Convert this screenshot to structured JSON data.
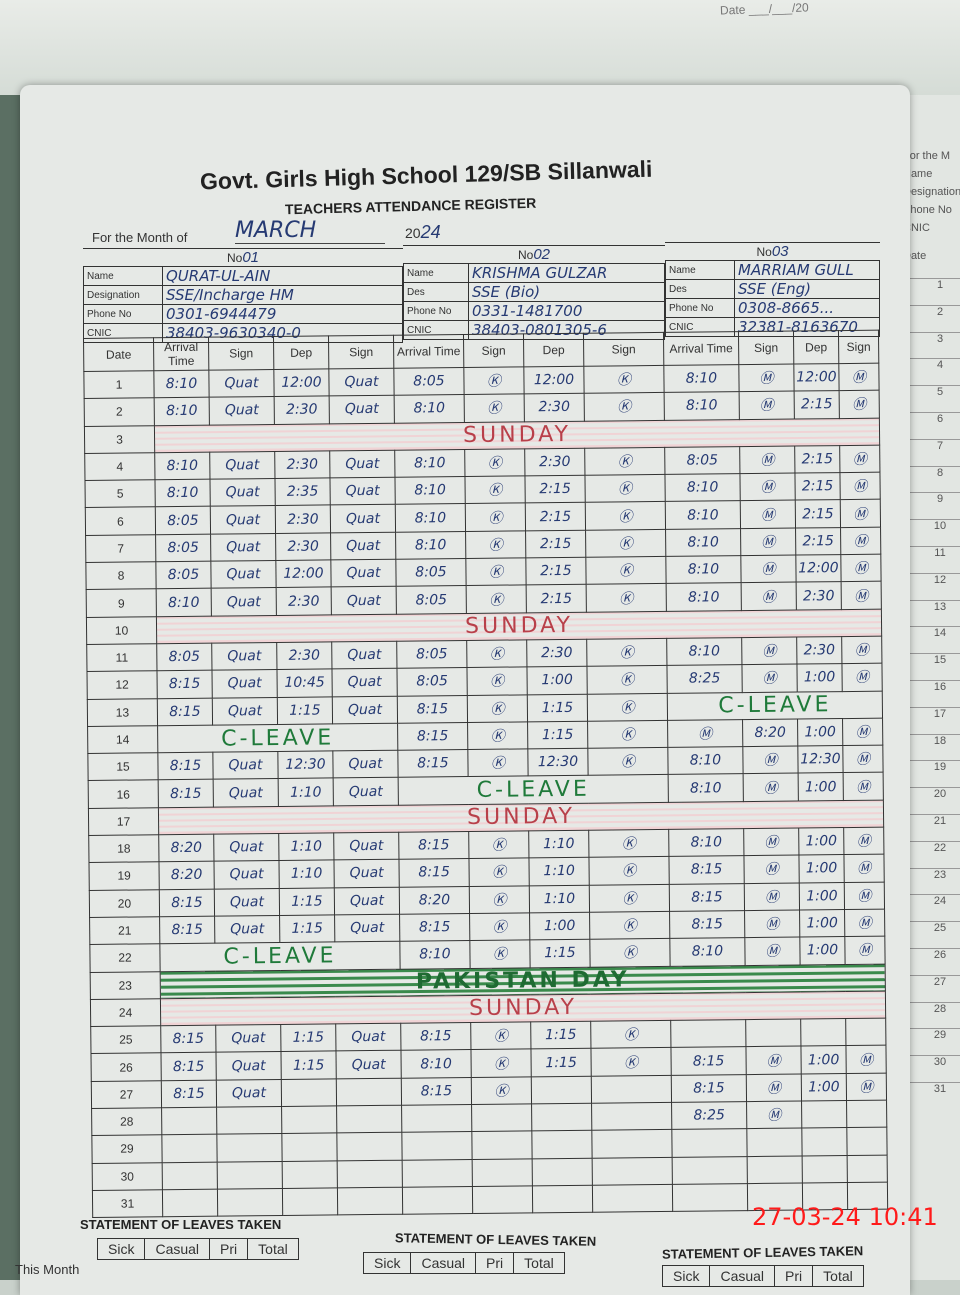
{
  "photo_timestamp": "27-03-24 10:41",
  "top_stamp": "Date ___/___/20",
  "school_name": "Govt. Girls High School 129/SB Sillanwali",
  "register_title": "TEACHERS ATTENDANCE REGISTER",
  "month_label": "For the Month of",
  "month_value": "MARCH",
  "year_prefix": "20",
  "year_value": "24",
  "info_labels": {
    "no": "No",
    "name": "Name",
    "designation": "Designation",
    "des": "Des",
    "phone": "Phone No",
    "cnic": "CNIC"
  },
  "teachers": [
    {
      "no": "01",
      "name": "QURAT-UL-AIN",
      "designation": "SSE/Incharge HM",
      "phone": "0301-6944479",
      "cnic": "38403-9630340-0"
    },
    {
      "no": "02",
      "name": "KRISHMA GULZAR",
      "designation": "SSE (Bio)",
      "phone": "0331-1481700",
      "cnic": "38403-0801305-6"
    },
    {
      "no": "03",
      "name": "MARRIAM GULL",
      "designation": "SSE (Eng)",
      "phone": "0308-8665...",
      "cnic": "32381-8163670"
    }
  ],
  "columns": {
    "date": "Date",
    "arrival": "Arrival Time",
    "sign": "Sign",
    "dep": "Dep"
  },
  "rows": [
    {
      "date": "1",
      "t": [
        [
          "8:10",
          "Quat",
          "12:00",
          "Quat"
        ],
        [
          "8:05",
          "Ⓚ",
          "12:00",
          "Ⓚ"
        ],
        [
          "8:10",
          "Ⓜ",
          "12:00",
          "Ⓜ"
        ]
      ]
    },
    {
      "date": "2",
      "t": [
        [
          "8:10",
          "Quat",
          "2:30",
          "Quat"
        ],
        [
          "8:10",
          "Ⓚ",
          "2:30",
          "Ⓚ"
        ],
        [
          "8:10",
          "Ⓜ",
          "2:15",
          "Ⓜ"
        ]
      ]
    },
    {
      "date": "3",
      "note": "SUNDAY",
      "color": "red"
    },
    {
      "date": "4",
      "t": [
        [
          "8:10",
          "Quat",
          "2:30",
          "Quat"
        ],
        [
          "8:10",
          "Ⓚ",
          "2:30",
          "Ⓚ"
        ],
        [
          "8:05",
          "Ⓜ",
          "2:15",
          "Ⓜ"
        ]
      ]
    },
    {
      "date": "5",
      "t": [
        [
          "8:10",
          "Quat",
          "2:35",
          "Quat"
        ],
        [
          "8:10",
          "Ⓚ",
          "2:15",
          "Ⓚ"
        ],
        [
          "8:10",
          "Ⓜ",
          "2:15",
          "Ⓜ"
        ]
      ]
    },
    {
      "date": "6",
      "t": [
        [
          "8:05",
          "Quat",
          "2:30",
          "Quat"
        ],
        [
          "8:10",
          "Ⓚ",
          "2:15",
          "Ⓚ"
        ],
        [
          "8:10",
          "Ⓜ",
          "2:15",
          "Ⓜ"
        ]
      ]
    },
    {
      "date": "7",
      "t": [
        [
          "8:05",
          "Quat",
          "2:30",
          "Quat"
        ],
        [
          "8:10",
          "Ⓚ",
          "2:15",
          "Ⓚ"
        ],
        [
          "8:10",
          "Ⓜ",
          "2:15",
          "Ⓜ"
        ]
      ]
    },
    {
      "date": "8",
      "t": [
        [
          "8:05",
          "Quat",
          "12:00",
          "Quat"
        ],
        [
          "8:05",
          "Ⓚ",
          "2:15",
          "Ⓚ"
        ],
        [
          "8:10",
          "Ⓜ",
          "12:00",
          "Ⓜ"
        ]
      ]
    },
    {
      "date": "9",
      "t": [
        [
          "8:10",
          "Quat",
          "2:30",
          "Quat"
        ],
        [
          "8:05",
          "Ⓚ",
          "2:15",
          "Ⓚ"
        ],
        [
          "8:10",
          "Ⓜ",
          "2:30",
          "Ⓜ"
        ]
      ]
    },
    {
      "date": "10",
      "note": "SUNDAY",
      "color": "red"
    },
    {
      "date": "11",
      "t": [
        [
          "8:05",
          "Quat",
          "2:30",
          "Quat"
        ],
        [
          "8:05",
          "Ⓚ",
          "2:30",
          "Ⓚ"
        ],
        [
          "8:10",
          "Ⓜ",
          "2:30",
          "Ⓜ"
        ]
      ]
    },
    {
      "date": "12",
      "t": [
        [
          "8:15",
          "Quat",
          "10:45",
          "Quat"
        ],
        [
          "8:05",
          "Ⓚ",
          "1:00",
          "Ⓚ"
        ],
        [
          "8:25",
          "Ⓜ",
          "1:00",
          "Ⓜ"
        ]
      ]
    },
    {
      "date": "13",
      "t": [
        [
          "8:15",
          "Quat",
          "1:15",
          "Quat"
        ],
        [
          "8:15",
          "Ⓚ",
          "1:15",
          "Ⓚ"
        ],
        "C-LEAVE"
      ]
    },
    {
      "date": "14",
      "t": [
        "C-LEAVE",
        [
          "8:15",
          "Ⓚ",
          "1:15",
          "Ⓚ"
        ],
        [
          "Ⓜ",
          "8:20",
          "1:00",
          "Ⓜ"
        ]
      ]
    },
    {
      "date": "15",
      "t": [
        [
          "8:15",
          "Quat",
          "12:30",
          "Quat"
        ],
        [
          "8:15",
          "Ⓚ",
          "12:30",
          "Ⓚ"
        ],
        [
          "8:10",
          "Ⓜ",
          "12:30",
          "Ⓜ"
        ]
      ]
    },
    {
      "date": "16",
      "t": [
        [
          "8:15",
          "Quat",
          "1:10",
          "Quat"
        ],
        "C-LEAVE",
        [
          "8:10",
          "Ⓜ",
          "1:00",
          "Ⓜ"
        ]
      ]
    },
    {
      "date": "17",
      "note": "SUNDAY",
      "color": "red"
    },
    {
      "date": "18",
      "t": [
        [
          "8:20",
          "Quat",
          "1:10",
          "Quat"
        ],
        [
          "8:15",
          "Ⓚ",
          "1:10",
          "Ⓚ"
        ],
        [
          "8:10",
          "Ⓜ",
          "1:00",
          "Ⓜ"
        ]
      ]
    },
    {
      "date": "19",
      "t": [
        [
          "8:20",
          "Quat",
          "1:10",
          "Quat"
        ],
        [
          "8:15",
          "Ⓚ",
          "1:10",
          "Ⓚ"
        ],
        [
          "8:15",
          "Ⓜ",
          "1:00",
          "Ⓜ"
        ]
      ]
    },
    {
      "date": "20",
      "t": [
        [
          "8:15",
          "Quat",
          "1:15",
          "Quat"
        ],
        [
          "8:20",
          "Ⓚ",
          "1:10",
          "Ⓚ"
        ],
        [
          "8:15",
          "Ⓜ",
          "1:00",
          "Ⓜ"
        ]
      ]
    },
    {
      "date": "21",
      "t": [
        [
          "8:15",
          "Quat",
          "1:15",
          "Quat"
        ],
        [
          "8:15",
          "Ⓚ",
          "1:00",
          "Ⓚ"
        ],
        [
          "8:15",
          "Ⓜ",
          "1:00",
          "Ⓜ"
        ]
      ]
    },
    {
      "date": "22",
      "t": [
        "C-LEAVE",
        [
          "8:10",
          "Ⓚ",
          "1:15",
          "Ⓚ"
        ],
        [
          "8:10",
          "Ⓜ",
          "1:00",
          "Ⓜ"
        ]
      ]
    },
    {
      "date": "23",
      "note": "PAKISTAN DAY",
      "color": "greenband"
    },
    {
      "date": "24",
      "note": "SUNDAY",
      "color": "red"
    },
    {
      "date": "25",
      "t": [
        [
          "8:15",
          "Quat",
          "1:15",
          "Quat"
        ],
        [
          "8:15",
          "Ⓚ",
          "1:15",
          "Ⓚ"
        ],
        [
          "",
          "",
          "",
          ""
        ]
      ]
    },
    {
      "date": "26",
      "t": [
        [
          "8:15",
          "Quat",
          "1:15",
          "Quat"
        ],
        [
          "8:10",
          "Ⓚ",
          "1:15",
          "Ⓚ"
        ],
        [
          "8:15",
          "Ⓜ",
          "1:00",
          "Ⓜ"
        ]
      ]
    },
    {
      "date": "27",
      "t": [
        [
          "8:15",
          "Quat",
          "",
          ""
        ],
        [
          "8:15",
          "Ⓚ",
          "",
          ""
        ],
        [
          "8:15",
          "Ⓜ",
          "1:00",
          "Ⓜ"
        ]
      ]
    },
    {
      "date": "28",
      "t": [
        [
          "",
          "",
          "",
          ""
        ],
        [
          "",
          "",
          "",
          ""
        ],
        [
          "8:25",
          "Ⓜ",
          "",
          ""
        ]
      ]
    },
    {
      "date": "29",
      "t": [
        [
          "",
          "",
          "",
          ""
        ],
        [
          "",
          "",
          "",
          ""
        ],
        [
          "",
          "",
          "",
          ""
        ]
      ]
    },
    {
      "date": "30",
      "t": [
        [
          "",
          "",
          "",
          ""
        ],
        [
          "",
          "",
          "",
          ""
        ],
        [
          "",
          "",
          "",
          ""
        ]
      ]
    },
    {
      "date": "31",
      "t": [
        [
          "",
          "",
          "",
          ""
        ],
        [
          "",
          "",
          "",
          ""
        ],
        [
          "",
          "",
          "",
          ""
        ]
      ]
    }
  ],
  "leaves": {
    "title": "STATEMENT OF LEAVES TAKEN",
    "headers": [
      "Sick",
      "Casual",
      "Pri",
      "Total"
    ],
    "this_month": "This Month"
  },
  "next_page": {
    "title": "For the M",
    "labels": [
      "Name",
      "Designation",
      "Phone No",
      "CNIC"
    ],
    "date": "Date"
  }
}
